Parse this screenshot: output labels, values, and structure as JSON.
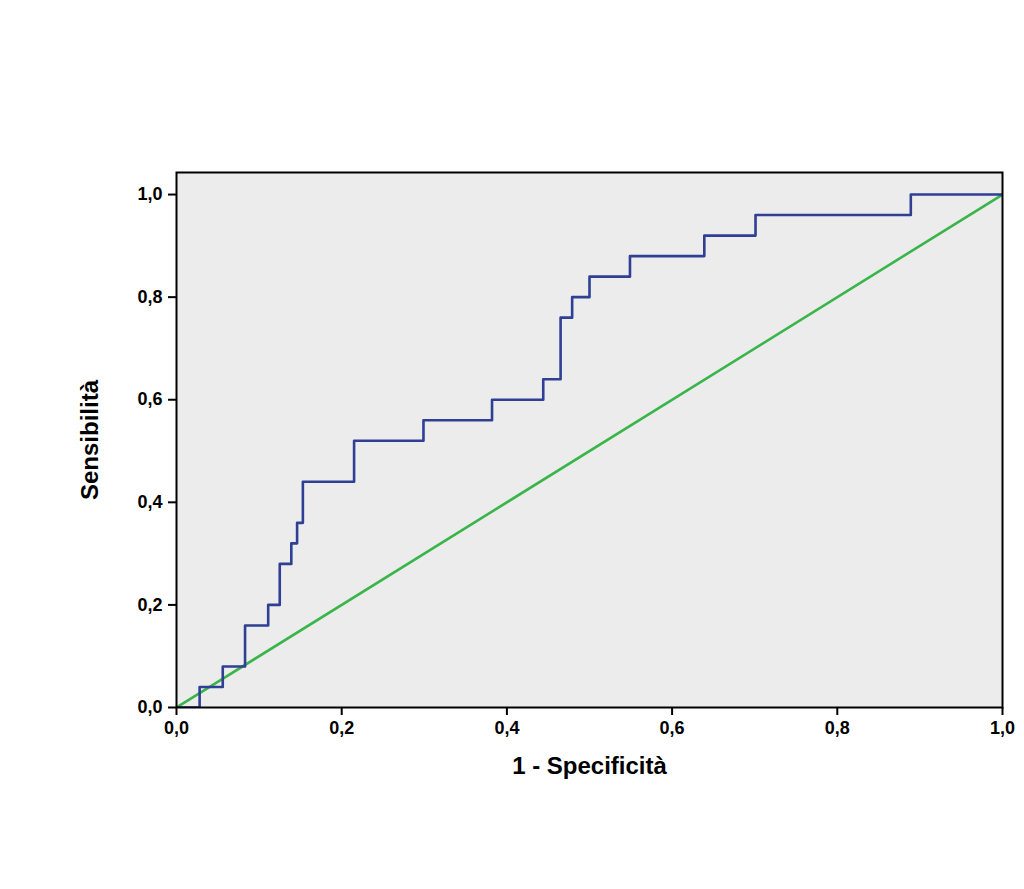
{
  "chart_data": {
    "type": "line",
    "xlabel": "1 - Specificità",
    "ylabel": "Sensibilità",
    "xlim": [
      0,
      1
    ],
    "ylim": [
      0,
      1.043
    ],
    "xticks": [
      {
        "value": 0,
        "label": "0,0"
      },
      {
        "value": 0.2,
        "label": "0,2"
      },
      {
        "value": 0.4,
        "label": "0,4"
      },
      {
        "value": 0.6,
        "label": "0,6"
      },
      {
        "value": 0.8,
        "label": "0,8"
      },
      {
        "value": 1,
        "label": "1,0"
      }
    ],
    "yticks": [
      {
        "value": 0,
        "label": "0,0"
      },
      {
        "value": 0.2,
        "label": "0,2"
      },
      {
        "value": 0.4,
        "label": "0,4"
      },
      {
        "value": 0.6,
        "label": "0,6"
      },
      {
        "value": 0.8,
        "label": "0,8"
      },
      {
        "value": 1,
        "label": "1,0"
      }
    ],
    "grid": false,
    "series": [
      {
        "color": "#2e3f94",
        "line_style": "step",
        "x": [
          0,
          0.028,
          0.056,
          0.083,
          0.111,
          0.125,
          0.139,
          0.146,
          0.153,
          0.215,
          0.299,
          0.382,
          0.444,
          0.465,
          0.479,
          0.5,
          0.549,
          0.639,
          0.701,
          0.889,
          1.0
        ],
        "values": [
          0,
          0.04,
          0.08,
          0.16,
          0.2,
          0.28,
          0.32,
          0.36,
          0.44,
          0.52,
          0.56,
          0.6,
          0.64,
          0.76,
          0.8,
          0.84,
          0.88,
          0.92,
          0.96,
          1.0,
          1.0
        ]
      },
      {
        "color": "#3ab54a",
        "line_style": "solid",
        "x": [
          0,
          1
        ],
        "values": [
          0,
          1
        ]
      }
    ]
  }
}
